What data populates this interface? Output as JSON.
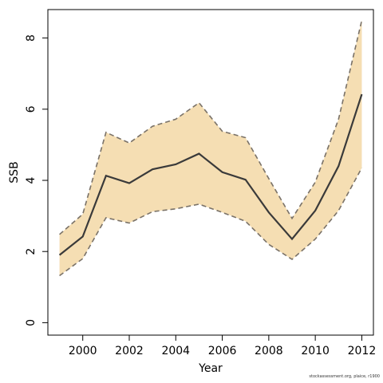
{
  "chart_data": {
    "type": "area",
    "xlabel": "Year",
    "ylabel": "SSB",
    "xlim": [
      1998.5,
      2012.5
    ],
    "ylim": [
      -0.35,
      8.8
    ],
    "xticks": [
      2000,
      2002,
      2004,
      2006,
      2008,
      2010,
      2012
    ],
    "yticks": [
      0,
      2,
      4,
      6,
      8
    ],
    "x": [
      1999,
      2000,
      2001,
      2002,
      2003,
      2004,
      2005,
      2006,
      2007,
      2008,
      2009,
      2010,
      2011,
      2012
    ],
    "series": [
      {
        "values": [
          1.9,
          2.42,
          4.13,
          3.92,
          4.31,
          4.45,
          4.75,
          4.23,
          4.02,
          3.1,
          2.35,
          3.15,
          4.4,
          6.42
        ]
      },
      {
        "values": [
          1.32,
          1.8,
          2.95,
          2.8,
          3.12,
          3.2,
          3.33,
          3.1,
          2.85,
          2.2,
          1.78,
          2.35,
          3.15,
          4.35
        ]
      },
      {
        "values": [
          2.48,
          3.05,
          5.35,
          5.05,
          5.52,
          5.72,
          6.18,
          5.38,
          5.2,
          4.05,
          2.93,
          3.95,
          5.72,
          8.5
        ]
      }
    ],
    "grid": false,
    "colors": {
      "band": "#f5deb3",
      "line": "#3a3a3a",
      "bounds": "#7a7268"
    }
  },
  "credit": "stockassessment.org, plaice, r1900"
}
